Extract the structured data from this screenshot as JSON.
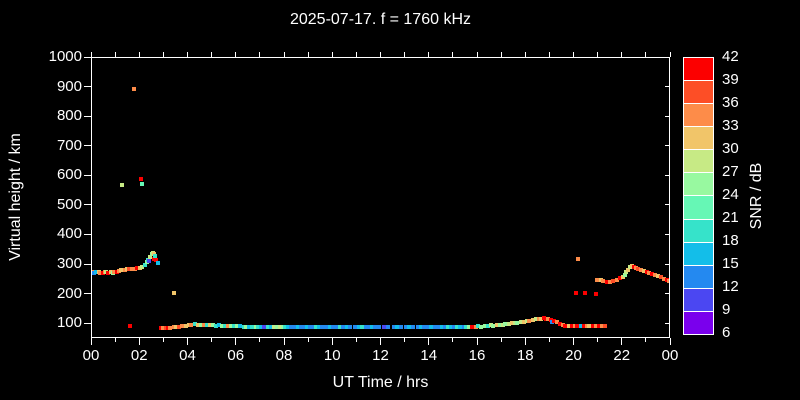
{
  "window": {
    "background": "#000000",
    "frame_color": "#ffffff",
    "text_color": "#ffffff"
  },
  "chart_data": {
    "type": "scatter",
    "title": "2025-07-17. f = 1760 kHz",
    "xlabel": "UT Time / hrs",
    "ylabel": "Virtual height / km",
    "xlim": [
      0,
      24
    ],
    "ylim": [
      50,
      1000
    ],
    "grid": false,
    "x_tick_hours": [
      0,
      2,
      4,
      6,
      8,
      10,
      12,
      14,
      16,
      18,
      20,
      22,
      24
    ],
    "x_tick_labels": [
      "00",
      "02",
      "04",
      "06",
      "08",
      "10",
      "12",
      "14",
      "16",
      "18",
      "20",
      "22",
      "00"
    ],
    "x_minor_tick_hours": [
      1,
      3,
      5,
      7,
      9,
      11,
      13,
      15,
      17,
      19,
      21,
      23
    ],
    "y_tick_values": [
      100,
      200,
      300,
      400,
      500,
      600,
      700,
      800,
      900,
      1000
    ],
    "colorbar": {
      "label": "SNR / dB",
      "tick_values": [
        6,
        9,
        12,
        15,
        18,
        21,
        24,
        27,
        30,
        33,
        36,
        39,
        42
      ],
      "bin_colors": [
        "#7A00ED",
        "#4B47F2",
        "#2489F0",
        "#13BEE9",
        "#36E3CA",
        "#66F7B5",
        "#98F9A0",
        "#C7EA85",
        "#F1C569",
        "#FD8C49",
        "#FD4E26",
        "#FC0000"
      ]
    },
    "series": [
      {
        "name": "ionospheric-echoes",
        "marker": "square",
        "point_format": "[hour_UT, virtual_height_km, snr_bin_index]",
        "points": [
          [
            0.02,
            277,
            9
          ],
          [
            0.1,
            274,
            2
          ],
          [
            0.18,
            276,
            3
          ],
          [
            0.27,
            277,
            8
          ],
          [
            0.35,
            274,
            9
          ],
          [
            0.44,
            273,
            11
          ],
          [
            0.52,
            276,
            9
          ],
          [
            0.6,
            277,
            7
          ],
          [
            0.68,
            273,
            11
          ],
          [
            0.77,
            275,
            8
          ],
          [
            0.85,
            274,
            6
          ],
          [
            0.93,
            277,
            9
          ],
          [
            1.02,
            278,
            11
          ],
          [
            1.12,
            281,
            9
          ],
          [
            1.22,
            283,
            8
          ],
          [
            1.35,
            284,
            9
          ],
          [
            1.45,
            286,
            8
          ],
          [
            1.55,
            287,
            10
          ],
          [
            1.65,
            285,
            9
          ],
          [
            1.78,
            287,
            9
          ],
          [
            1.88,
            289,
            11
          ],
          [
            1.98,
            291,
            8
          ],
          [
            2.08,
            293,
            7
          ],
          [
            2.18,
            300,
            4
          ],
          [
            2.28,
            310,
            6
          ],
          [
            2.33,
            318,
            4
          ],
          [
            2.38,
            314,
            1
          ],
          [
            2.42,
            328,
            7
          ],
          [
            2.47,
            336,
            6
          ],
          [
            2.52,
            342,
            7
          ],
          [
            2.57,
            338,
            8
          ],
          [
            2.55,
            322,
            11
          ],
          [
            2.63,
            330,
            4
          ],
          [
            2.67,
            316,
            11
          ],
          [
            2.72,
            308,
            3
          ],
          [
            1.23,
            570,
            7
          ],
          [
            1.73,
            895,
            9
          ],
          [
            2.02,
            592,
            11
          ],
          [
            2.09,
            574,
            5
          ],
          [
            3.4,
            205,
            8
          ],
          [
            1.58,
            93,
            11
          ],
          [
            2.85,
            86,
            11
          ],
          [
            2.95,
            87,
            9
          ],
          [
            3.05,
            86,
            10
          ],
          [
            3.15,
            87,
            11
          ],
          [
            3.25,
            88,
            9
          ],
          [
            3.38,
            90,
            9
          ],
          [
            3.5,
            92,
            8
          ],
          [
            3.62,
            91,
            10
          ],
          [
            3.75,
            94,
            9
          ],
          [
            3.88,
            95,
            8
          ],
          [
            4.0,
            97,
            8
          ],
          [
            4.12,
            99,
            9
          ],
          [
            4.26,
            100,
            4
          ],
          [
            4.4,
            99,
            8
          ],
          [
            4.52,
            98,
            6
          ],
          [
            4.65,
            97,
            9
          ],
          [
            4.78,
            96,
            4
          ],
          [
            4.9,
            97,
            8
          ],
          [
            5.02,
            96,
            6
          ],
          [
            5.15,
            95,
            4
          ],
          [
            5.28,
            96,
            3
          ],
          [
            5.4,
            95,
            6
          ],
          [
            5.52,
            94,
            4
          ],
          [
            5.65,
            95,
            9
          ],
          [
            5.78,
            94,
            6
          ],
          [
            5.9,
            93,
            4
          ],
          [
            6.02,
            94,
            6
          ],
          [
            6.15,
            93,
            3
          ],
          [
            6.28,
            92,
            4
          ],
          [
            6.4,
            92,
            6
          ],
          [
            6.52,
            91,
            3
          ],
          [
            6.65,
            92,
            4
          ],
          [
            6.78,
            91,
            6
          ],
          [
            6.9,
            90,
            4
          ],
          [
            7.02,
            91,
            3
          ],
          [
            7.15,
            90,
            1
          ],
          [
            7.28,
            91,
            4
          ],
          [
            7.4,
            90,
            3
          ],
          [
            7.55,
            91,
            7
          ],
          [
            7.65,
            90,
            6
          ],
          [
            7.78,
            91,
            7
          ],
          [
            7.9,
            90,
            6
          ],
          [
            8.02,
            91,
            4
          ],
          [
            8.12,
            90,
            3
          ],
          [
            8.25,
            90,
            2
          ],
          [
            8.4,
            89,
            2
          ],
          [
            8.52,
            90,
            3
          ],
          [
            8.65,
            89,
            2
          ],
          [
            8.78,
            90,
            2
          ],
          [
            8.9,
            89,
            3
          ],
          [
            9.02,
            90,
            2
          ],
          [
            9.15,
            89,
            2
          ],
          [
            9.3,
            90,
            4
          ],
          [
            9.42,
            89,
            3
          ],
          [
            9.55,
            90,
            2
          ],
          [
            9.7,
            89,
            2
          ],
          [
            9.85,
            90,
            3
          ],
          [
            10.0,
            89,
            2
          ],
          [
            10.12,
            90,
            2
          ],
          [
            10.3,
            89,
            4
          ],
          [
            10.42,
            90,
            2
          ],
          [
            10.55,
            89,
            3
          ],
          [
            10.7,
            90,
            2
          ],
          [
            10.9,
            89,
            2
          ],
          [
            11.05,
            90,
            3
          ],
          [
            11.2,
            89,
            4
          ],
          [
            11.35,
            90,
            2
          ],
          [
            11.5,
            89,
            2
          ],
          [
            11.62,
            90,
            3
          ],
          [
            11.75,
            89,
            2
          ],
          [
            11.9,
            90,
            2
          ],
          [
            12.1,
            89,
            1
          ],
          [
            12.25,
            90,
            2
          ],
          [
            12.5,
            89,
            2
          ],
          [
            12.65,
            90,
            3
          ],
          [
            12.8,
            89,
            2
          ],
          [
            13.0,
            90,
            2
          ],
          [
            13.15,
            89,
            3
          ],
          [
            13.3,
            90,
            2
          ],
          [
            13.5,
            89,
            2
          ],
          [
            13.62,
            90,
            3
          ],
          [
            13.75,
            89,
            2
          ],
          [
            13.9,
            90,
            2
          ],
          [
            14.05,
            89,
            3
          ],
          [
            14.2,
            90,
            2
          ],
          [
            14.35,
            90,
            2
          ],
          [
            14.5,
            89,
            3
          ],
          [
            14.62,
            90,
            2
          ],
          [
            14.75,
            91,
            4
          ],
          [
            14.9,
            90,
            3
          ],
          [
            15.02,
            91,
            2
          ],
          [
            15.12,
            90,
            4
          ],
          [
            15.25,
            91,
            3
          ],
          [
            15.4,
            90,
            2
          ],
          [
            15.52,
            91,
            4
          ],
          [
            15.62,
            92,
            6
          ],
          [
            15.75,
            91,
            11
          ],
          [
            15.9,
            92,
            9
          ],
          [
            16.02,
            93,
            4
          ],
          [
            16.12,
            92,
            6
          ],
          [
            16.28,
            94,
            6
          ],
          [
            16.4,
            95,
            4
          ],
          [
            16.52,
            96,
            7
          ],
          [
            16.62,
            95,
            6
          ],
          [
            16.78,
            97,
            8
          ],
          [
            16.9,
            98,
            6
          ],
          [
            17.02,
            99,
            7
          ],
          [
            17.12,
            100,
            6
          ],
          [
            17.28,
            102,
            7
          ],
          [
            17.4,
            103,
            8
          ],
          [
            17.52,
            104,
            7
          ],
          [
            17.62,
            105,
            6
          ],
          [
            17.78,
            107,
            7
          ],
          [
            17.9,
            108,
            8
          ],
          [
            18.02,
            110,
            7
          ],
          [
            18.12,
            112,
            9
          ],
          [
            18.28,
            113,
            8
          ],
          [
            18.4,
            116,
            7
          ],
          [
            18.52,
            118,
            9
          ],
          [
            18.62,
            119,
            8
          ],
          [
            18.72,
            120,
            11
          ],
          [
            18.82,
            119,
            11
          ],
          [
            18.92,
            117,
            9
          ],
          [
            19.02,
            114,
            11
          ],
          [
            19.08,
            108,
            2
          ],
          [
            19.15,
            112,
            11
          ],
          [
            19.28,
            108,
            9
          ],
          [
            19.4,
            100,
            11
          ],
          [
            19.52,
            97,
            9
          ],
          [
            19.62,
            95,
            11
          ],
          [
            19.78,
            94,
            8
          ],
          [
            19.9,
            93,
            11
          ],
          [
            20.02,
            94,
            9
          ],
          [
            20.12,
            93,
            11
          ],
          [
            20.28,
            94,
            3
          ],
          [
            20.4,
            93,
            11
          ],
          [
            20.52,
            94,
            9
          ],
          [
            20.62,
            93,
            8
          ],
          [
            20.78,
            94,
            11
          ],
          [
            20.9,
            93,
            9
          ],
          [
            21.02,
            94,
            11
          ],
          [
            21.12,
            93,
            9
          ],
          [
            21.28,
            94,
            10
          ],
          [
            20.15,
            320,
            9
          ],
          [
            20.05,
            205,
            11
          ],
          [
            20.45,
            205,
            11
          ],
          [
            20.9,
            203,
            11
          ],
          [
            20.95,
            250,
            9
          ],
          [
            21.08,
            248,
            8
          ],
          [
            21.2,
            245,
            9
          ],
          [
            21.35,
            243,
            11
          ],
          [
            21.48,
            244,
            9
          ],
          [
            21.6,
            247,
            10
          ],
          [
            21.75,
            250,
            9
          ],
          [
            21.88,
            255,
            11
          ],
          [
            22.0,
            261,
            8
          ],
          [
            22.08,
            268,
            6
          ],
          [
            22.15,
            276,
            7
          ],
          [
            22.22,
            284,
            8
          ],
          [
            22.3,
            292,
            7
          ],
          [
            22.38,
            297,
            8
          ],
          [
            22.45,
            293,
            11
          ],
          [
            22.55,
            290,
            9
          ],
          [
            22.65,
            287,
            10
          ],
          [
            22.75,
            284,
            9
          ],
          [
            22.88,
            280,
            8
          ],
          [
            23.0,
            277,
            11
          ],
          [
            23.1,
            273,
            9
          ],
          [
            23.22,
            270,
            11
          ],
          [
            23.35,
            266,
            9
          ],
          [
            23.48,
            262,
            8
          ],
          [
            23.6,
            258,
            10
          ],
          [
            23.7,
            254,
            9
          ],
          [
            23.82,
            250,
            11
          ],
          [
            23.92,
            246,
            9
          ],
          [
            24.0,
            243,
            10
          ]
        ]
      }
    ]
  }
}
